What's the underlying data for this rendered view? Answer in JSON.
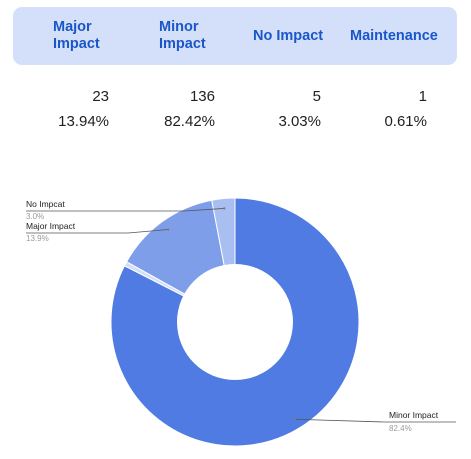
{
  "summary": {
    "headers": [
      "Major\nImpact",
      "Minor\nImpact",
      "No Impact",
      "Maintenance"
    ],
    "counts": [
      "23",
      "136",
      "5",
      "1"
    ],
    "percents": [
      "13.94%",
      "82.42%",
      "3.03%",
      "0.61%"
    ]
  },
  "colors": {
    "header_bg": "#d4e0f9",
    "header_text": "#1a56c9",
    "minor": "#4f7be3",
    "major": "#7f9ee9",
    "no_impact": "#a9bff2",
    "maintenance": "#d3defa"
  },
  "chart_data": {
    "type": "pie",
    "donut": true,
    "title": "",
    "slices": [
      {
        "label": "Minor Impact",
        "value": 82.4,
        "pct_label": "82.4%"
      },
      {
        "label": "Maintenance",
        "value": 0.6,
        "pct_label": ""
      },
      {
        "label": "Major Impact",
        "value": 13.9,
        "pct_label": "13.9%"
      },
      {
        "label": "No Impcat",
        "value": 3.0,
        "pct_label": "3.0%"
      }
    ],
    "legend": "none"
  }
}
